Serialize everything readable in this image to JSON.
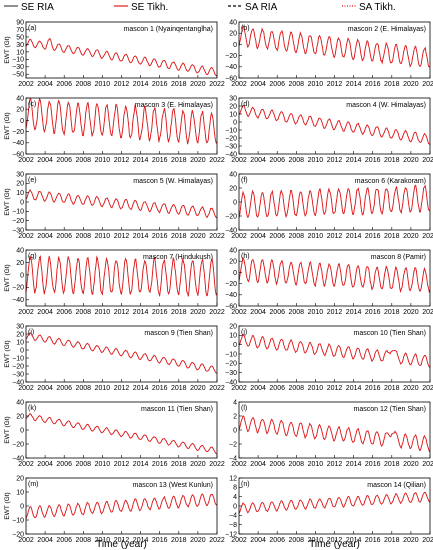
{
  "legend": [
    {
      "label": "SE RIA",
      "color": "#444444",
      "dash": "solid"
    },
    {
      "label": "SE Tikh.",
      "color": "#e41a1c",
      "dash": "solid"
    },
    {
      "label": "SA RIA",
      "color": "#000000",
      "dash": "dashed"
    },
    {
      "label": "SA Tikh.",
      "color": "#e41a1c",
      "dash": "dotted"
    }
  ],
  "x_axis_label": "Time (year)",
  "y_axis_label": "EWT (Gt)",
  "chart_data": [
    {
      "type": "line",
      "panel": "(a)",
      "title": "mascon  1 (Nyainqentanglha)",
      "xlim": [
        2002,
        2022
      ],
      "ylim": [
        -60,
        90
      ],
      "yticks": [
        90,
        70,
        50,
        30,
        10,
        -10,
        -30,
        -50
      ],
      "xticks": [
        2002,
        2004,
        2006,
        2008,
        2010,
        2012,
        2014,
        2016,
        2018,
        2020,
        2022
      ],
      "trend": [
        35,
        -45
      ],
      "amplitude": 10,
      "peak": [
        2004.5,
        45
      ]
    },
    {
      "type": "line",
      "panel": "(b)",
      "title": "mascon  2 (E. Himalayas)",
      "xlim": [
        2002,
        2022
      ],
      "ylim": [
        -60,
        40
      ],
      "yticks": [
        40,
        20,
        0,
        -20,
        -40,
        -60
      ],
      "xticks": [
        2002,
        2004,
        2006,
        2008,
        2010,
        2012,
        2014,
        2016,
        2018,
        2020,
        2022
      ],
      "trend": [
        15,
        -25
      ],
      "amplitude": 17
    },
    {
      "type": "line",
      "panel": "(c)",
      "title": "mascon  3 (E. Himalayas)",
      "xlim": [
        2002,
        2022
      ],
      "ylim": [
        -60,
        40
      ],
      "yticks": [
        40,
        20,
        0,
        -20,
        -40,
        -60
      ],
      "xticks": [
        2002,
        2004,
        2006,
        2008,
        2010,
        2012,
        2014,
        2016,
        2018,
        2020,
        2022
      ],
      "trend": [
        10,
        -15
      ],
      "amplitude": 28
    },
    {
      "type": "line",
      "panel": "(d)",
      "title": "mascon  4 (W. Himalayas)",
      "xlim": [
        2002,
        2022
      ],
      "ylim": [
        -40,
        30
      ],
      "yticks": [
        30,
        20,
        10,
        0,
        -10,
        -20,
        -30,
        -40
      ],
      "xticks": [
        2002,
        2004,
        2006,
        2008,
        2010,
        2012,
        2014,
        2016,
        2018,
        2020,
        2022
      ],
      "trend": [
        15,
        -22
      ],
      "amplitude": 6
    },
    {
      "type": "line",
      "panel": "(e)",
      "title": "mascon  5 (W. Himalayas)",
      "xlim": [
        2002,
        2022
      ],
      "ylim": [
        -30,
        30
      ],
      "yticks": [
        30,
        20,
        10,
        0,
        -10,
        -20,
        -30
      ],
      "xticks": [
        2002,
        2004,
        2006,
        2008,
        2010,
        2012,
        2014,
        2016,
        2018,
        2020,
        2022
      ],
      "trend": [
        8,
        -12
      ],
      "amplitude": 5
    },
    {
      "type": "line",
      "panel": "(f)",
      "title": "mascon  6 (Karakoram)",
      "xlim": [
        2002,
        2022
      ],
      "ylim": [
        -40,
        40
      ],
      "yticks": [
        40,
        20,
        0,
        -20,
        -40
      ],
      "xticks": [
        2002,
        2004,
        2006,
        2008,
        2010,
        2012,
        2014,
        2016,
        2018,
        2020,
        2022
      ],
      "trend": [
        -5,
        5
      ],
      "amplitude": 18
    },
    {
      "type": "line",
      "panel": "(g)",
      "title": "mascon  7 (Hindukush)",
      "xlim": [
        2002,
        2022
      ],
      "ylim": [
        -50,
        40
      ],
      "yticks": [
        40,
        20,
        0,
        -20,
        -40
      ],
      "xticks": [
        2002,
        2004,
        2006,
        2008,
        2010,
        2012,
        2014,
        2016,
        2018,
        2020,
        2022
      ],
      "trend": [
        0,
        -5
      ],
      "amplitude": 28
    },
    {
      "type": "line",
      "panel": "(h)",
      "title": "mascon  8 (Pamir)",
      "xlim": [
        2002,
        2022
      ],
      "ylim": [
        -60,
        40
      ],
      "yticks": [
        40,
        20,
        0,
        -20,
        -40,
        -60
      ],
      "xticks": [
        2002,
        2004,
        2006,
        2008,
        2010,
        2012,
        2014,
        2016,
        2018,
        2020,
        2022
      ],
      "trend": [
        5,
        -15
      ],
      "amplitude": 20
    },
    {
      "type": "line",
      "panel": "(i)",
      "title": "mascon  9 (Tien Shan)",
      "xlim": [
        2002,
        2022
      ],
      "ylim": [
        -40,
        30
      ],
      "yticks": [
        30,
        20,
        10,
        0,
        -10,
        -20,
        -30,
        -40
      ],
      "xticks": [
        2002,
        2004,
        2006,
        2008,
        2010,
        2012,
        2014,
        2016,
        2018,
        2020,
        2022
      ],
      "trend": [
        18,
        -25
      ],
      "amplitude": 4
    },
    {
      "type": "line",
      "panel": "(j)",
      "title": "mascon 10 (Tien Shan)",
      "xlim": [
        2002,
        2022
      ],
      "ylim": [
        -40,
        20
      ],
      "yticks": [
        20,
        10,
        0,
        -10,
        -20,
        -30,
        -40
      ],
      "xticks": [
        2002,
        2004,
        2006,
        2008,
        2010,
        2012,
        2014,
        2016,
        2018,
        2020,
        2022
      ],
      "trend": [
        5,
        -18
      ],
      "amplitude": 6,
      "peak": [
        2018,
        10
      ]
    },
    {
      "type": "line",
      "panel": "(k)",
      "title": "mascon 11 (Tien Shan)",
      "xlim": [
        2002,
        2022
      ],
      "ylim": [
        -40,
        40
      ],
      "yticks": [
        40,
        20,
        0,
        -20,
        -40
      ],
      "xticks": [
        2002,
        2004,
        2006,
        2008,
        2010,
        2012,
        2014,
        2016,
        2018,
        2020,
        2022
      ],
      "trend": [
        20,
        -30
      ],
      "amplitude": 4
    },
    {
      "type": "line",
      "panel": "(l)",
      "title": "mascon 12 (Tien Shan)",
      "xlim": [
        2002,
        2022
      ],
      "ylim": [
        -4,
        4
      ],
      "yticks": [
        4,
        2,
        0,
        -2,
        -4
      ],
      "xticks": [
        2002,
        2004,
        2006,
        2008,
        2010,
        2012,
        2014,
        2016,
        2018,
        2020,
        2022
      ],
      "trend": [
        1,
        -2
      ],
      "amplitude": 1,
      "peak": [
        2018,
        2
      ]
    },
    {
      "type": "line",
      "panel": "(m)",
      "title": "mascon 13 (West Kunlun)",
      "xlim": [
        2002,
        2022
      ],
      "ylim": [
        -20,
        20
      ],
      "yticks": [
        20,
        10,
        0,
        -10,
        -20
      ],
      "xticks": [
        2002,
        2004,
        2006,
        2008,
        2010,
        2012,
        2014,
        2016,
        2018,
        2020,
        2022
      ],
      "trend": [
        -5,
        5
      ],
      "amplitude": 4
    },
    {
      "type": "line",
      "panel": "(n)",
      "title": "mascon 14 (Qilian)",
      "xlim": [
        2002,
        2022
      ],
      "ylim": [
        -12,
        12
      ],
      "yticks": [
        12,
        8,
        4,
        0,
        -4,
        -8,
        -12
      ],
      "xticks": [
        2002,
        2004,
        2006,
        2008,
        2010,
        2012,
        2014,
        2016,
        2018,
        2020,
        2022
      ],
      "trend": [
        -1,
        4
      ],
      "amplitude": 2
    }
  ]
}
